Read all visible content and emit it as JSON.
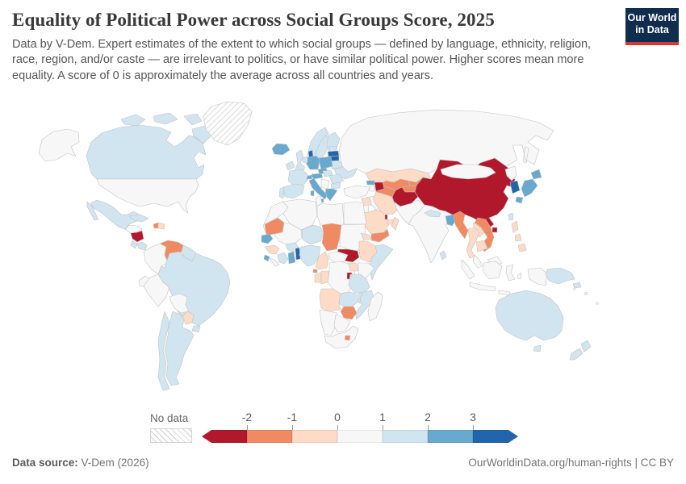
{
  "header": {
    "title": "Equality of Political Power across Social Groups Score, 2025",
    "subtitle": "Data by V-Dem. Expert estimates of the extent to which social groups — defined by language, ethnicity, religion, race, region, and/or caste — are irrelevant to politics, or have similar political power. Higher scores mean more equality. A score of 0 is approximately the average across all countries and years.",
    "logo": {
      "line1": "Our World",
      "line2": "in Data",
      "bg": "#102d4f",
      "stripe": "#d93832"
    }
  },
  "legend": {
    "no_data_label": "No data",
    "ticks": [
      "-2",
      "-1",
      "0",
      "1",
      "2",
      "3"
    ]
  },
  "footer": {
    "source_label": "Data source:",
    "source_value": "V-Dem (2026)",
    "right_text": "OurWorldinData.org/human-rights | CC BY"
  },
  "chart_data": {
    "type": "choropleth",
    "title": "Equality of Political Power across Social Groups Score",
    "year": "2025",
    "scale_ticks": [
      -2,
      -1,
      0,
      1,
      2,
      3
    ],
    "bins": [
      {
        "label": "< -2",
        "color": "#b2182b"
      },
      {
        "label": "-2 to -1",
        "color": "#ef8a62"
      },
      {
        "label": "-1 to 0",
        "color": "#fddbc7"
      },
      {
        "label": "0 to 1",
        "color": "#f7f7f7"
      },
      {
        "label": "1 to 2",
        "color": "#d1e5f0"
      },
      {
        "label": "2 to 3",
        "color": "#67a9cf"
      },
      {
        "label": "> 3",
        "color": "#2166ac"
      },
      {
        "label": "No data",
        "color": "hatch"
      }
    ],
    "no_data_bin_label": "No data",
    "countries": [
      {
        "name": "China",
        "bin": "< -2"
      },
      {
        "name": "Afghanistan",
        "bin": "< -2"
      },
      {
        "name": "Azerbaijan",
        "bin": "< -2"
      },
      {
        "name": "Qatar",
        "bin": "< -2"
      },
      {
        "name": "South Sudan",
        "bin": "< -2"
      },
      {
        "name": "Nicaragua",
        "bin": "< -2"
      },
      {
        "name": "Burundi",
        "bin": "< -2"
      },
      {
        "name": "Venezuela",
        "bin": "-2 to -1"
      },
      {
        "name": "Haiti",
        "bin": "-2 to -1"
      },
      {
        "name": "Mauritania",
        "bin": "-2 to -1"
      },
      {
        "name": "Chad",
        "bin": "-2 to -1"
      },
      {
        "name": "Yemen",
        "bin": "-2 to -1"
      },
      {
        "name": "Zimbabwe",
        "bin": "-2 to -1"
      },
      {
        "name": "Uzbekistan",
        "bin": "-2 to -1"
      },
      {
        "name": "Turkmenistan",
        "bin": "-2 to -1"
      },
      {
        "name": "Kyrgyzstan",
        "bin": "-2 to -1"
      },
      {
        "name": "Tajikistan",
        "bin": "-2 to -1"
      },
      {
        "name": "Myanmar",
        "bin": "-2 to -1"
      },
      {
        "name": "Vietnam",
        "bin": "-2 to -1"
      },
      {
        "name": "Equatorial Guinea",
        "bin": "-2 to -1"
      },
      {
        "name": "Lesotho",
        "bin": "-2 to -1"
      },
      {
        "name": "Paraguay",
        "bin": "-1 to 0"
      },
      {
        "name": "Dominican Republic",
        "bin": "-1 to 0"
      },
      {
        "name": "Guinea",
        "bin": "-1 to 0"
      },
      {
        "name": "Cameroon",
        "bin": "-1 to 0"
      },
      {
        "name": "Gabon",
        "bin": "-1 to 0"
      },
      {
        "name": "Republic of the Congo",
        "bin": "-1 to 0"
      },
      {
        "name": "Angola",
        "bin": "-1 to 0"
      },
      {
        "name": "Uganda",
        "bin": "-1 to 0"
      },
      {
        "name": "Ethiopia",
        "bin": "-1 to 0"
      },
      {
        "name": "Eritrea",
        "bin": "-1 to 0"
      },
      {
        "name": "Iran",
        "bin": "-1 to 0"
      },
      {
        "name": "Saudi Arabia",
        "bin": "-1 to 0"
      },
      {
        "name": "Oman",
        "bin": "-1 to 0"
      },
      {
        "name": "United Arab Emirates",
        "bin": "-1 to 0"
      },
      {
        "name": "Syria",
        "bin": "-1 to 0"
      },
      {
        "name": "Kazakhstan",
        "bin": "-1 to 0"
      },
      {
        "name": "Thailand",
        "bin": "-1 to 0"
      },
      {
        "name": "Laos",
        "bin": "-1 to 0"
      },
      {
        "name": "Cambodia",
        "bin": "-1 to 0"
      },
      {
        "name": "Philippines",
        "bin": "-1 to 0"
      },
      {
        "name": "United States",
        "bin": "0 to 1"
      },
      {
        "name": "Russia",
        "bin": "0 to 1"
      },
      {
        "name": "Mongolia",
        "bin": "0 to 1"
      },
      {
        "name": "North Korea",
        "bin": "0 to 1"
      },
      {
        "name": "India",
        "bin": "0 to 1"
      },
      {
        "name": "Pakistan",
        "bin": "0 to 1"
      },
      {
        "name": "Turkey",
        "bin": "0 to 1"
      },
      {
        "name": "Iraq",
        "bin": "0 to 1"
      },
      {
        "name": "Jordan",
        "bin": "0 to 1"
      },
      {
        "name": "Kuwait",
        "bin": "0 to 1"
      },
      {
        "name": "Armenia",
        "bin": "0 to 1"
      },
      {
        "name": "Morocco",
        "bin": "0 to 1"
      },
      {
        "name": "Algeria",
        "bin": "0 to 1"
      },
      {
        "name": "Tunisia",
        "bin": "0 to 1"
      },
      {
        "name": "Libya",
        "bin": "0 to 1"
      },
      {
        "name": "Egypt",
        "bin": "0 to 1"
      },
      {
        "name": "Sudan",
        "bin": "0 to 1"
      },
      {
        "name": "Mali",
        "bin": "0 to 1"
      },
      {
        "name": "Liberia",
        "bin": "0 to 1"
      },
      {
        "name": "Central African Republic",
        "bin": "0 to 1"
      },
      {
        "name": "Democratic Republic of Congo",
        "bin": "0 to 1"
      },
      {
        "name": "Kenya",
        "bin": "0 to 1"
      },
      {
        "name": "Namibia",
        "bin": "0 to 1"
      },
      {
        "name": "Botswana",
        "bin": "0 to 1"
      },
      {
        "name": "South Africa",
        "bin": "0 to 1"
      },
      {
        "name": "Madagascar",
        "bin": "0 to 1"
      },
      {
        "name": "Colombia",
        "bin": "0 to 1"
      },
      {
        "name": "Peru",
        "bin": "0 to 1"
      },
      {
        "name": "Bolivia",
        "bin": "0 to 1"
      },
      {
        "name": "Ecuador",
        "bin": "0 to 1"
      },
      {
        "name": "Indonesia",
        "bin": "0 to 1"
      },
      {
        "name": "Malaysia",
        "bin": "0 to 1"
      },
      {
        "name": "Serbia",
        "bin": "0 to 1"
      },
      {
        "name": "Guatemala",
        "bin": "0 to 1"
      },
      {
        "name": "Canada",
        "bin": "1 to 2"
      },
      {
        "name": "Mexico",
        "bin": "1 to 2"
      },
      {
        "name": "Cuba",
        "bin": "1 to 2"
      },
      {
        "name": "Costa Rica",
        "bin": "1 to 2"
      },
      {
        "name": "Panama",
        "bin": "1 to 2"
      },
      {
        "name": "Brazil",
        "bin": "1 to 2"
      },
      {
        "name": "Argentina",
        "bin": "1 to 2"
      },
      {
        "name": "Chile",
        "bin": "1 to 2"
      },
      {
        "name": "Uruguay",
        "bin": "1 to 2"
      },
      {
        "name": "Guyana",
        "bin": "1 to 2"
      },
      {
        "name": "United Kingdom",
        "bin": "1 to 2"
      },
      {
        "name": "Ireland",
        "bin": "1 to 2"
      },
      {
        "name": "France",
        "bin": "1 to 2"
      },
      {
        "name": "Spain",
        "bin": "1 to 2"
      },
      {
        "name": "Portugal",
        "bin": "1 to 2"
      },
      {
        "name": "Norway",
        "bin": "1 to 2"
      },
      {
        "name": "Sweden",
        "bin": "1 to 2"
      },
      {
        "name": "Finland",
        "bin": "1 to 2"
      },
      {
        "name": "Estonia",
        "bin": "1 to 2"
      },
      {
        "name": "Belarus",
        "bin": "1 to 2"
      },
      {
        "name": "Ukraine",
        "bin": "1 to 2"
      },
      {
        "name": "Romania",
        "bin": "1 to 2"
      },
      {
        "name": "Bulgaria",
        "bin": "1 to 2"
      },
      {
        "name": "Hungary",
        "bin": "1 to 2"
      },
      {
        "name": "Netherlands",
        "bin": "1 to 2"
      },
      {
        "name": "Niger",
        "bin": "1 to 2"
      },
      {
        "name": "Nigeria",
        "bin": "1 to 2"
      },
      {
        "name": "Burkina Faso",
        "bin": "1 to 2"
      },
      {
        "name": "Ivory Coast",
        "bin": "1 to 2"
      },
      {
        "name": "Tanzania",
        "bin": "1 to 2"
      },
      {
        "name": "Zambia",
        "bin": "1 to 2"
      },
      {
        "name": "Malawi",
        "bin": "1 to 2"
      },
      {
        "name": "Mozambique",
        "bin": "1 to 2"
      },
      {
        "name": "Somalia",
        "bin": "1 to 2"
      },
      {
        "name": "Israel",
        "bin": "1 to 2"
      },
      {
        "name": "Nepal",
        "bin": "1 to 2"
      },
      {
        "name": "Sri Lanka",
        "bin": "1 to 2"
      },
      {
        "name": "Taiwan",
        "bin": "1 to 2"
      },
      {
        "name": "Papua New Guinea",
        "bin": "1 to 2"
      },
      {
        "name": "Australia",
        "bin": "1 to 2"
      },
      {
        "name": "New Zealand",
        "bin": "1 to 2"
      },
      {
        "name": "Iceland",
        "bin": "2 to 3"
      },
      {
        "name": "Germany",
        "bin": "2 to 3"
      },
      {
        "name": "Poland",
        "bin": "2 to 3"
      },
      {
        "name": "Czechia",
        "bin": "2 to 3"
      },
      {
        "name": "Austria",
        "bin": "2 to 3"
      },
      {
        "name": "Switzerland",
        "bin": "2 to 3"
      },
      {
        "name": "Italy",
        "bin": "2 to 3"
      },
      {
        "name": "Greece",
        "bin": "2 to 3"
      },
      {
        "name": "Georgia",
        "bin": "2 to 3"
      },
      {
        "name": "Senegal",
        "bin": "2 to 3"
      },
      {
        "name": "Sierra Leone",
        "bin": "2 to 3"
      },
      {
        "name": "Ghana",
        "bin": "2 to 3"
      },
      {
        "name": "Japan",
        "bin": "2 to 3"
      },
      {
        "name": "Bangladesh",
        "bin": "2 to 3"
      },
      {
        "name": "Denmark",
        "bin": "> 3"
      },
      {
        "name": "Latvia",
        "bin": "> 3"
      },
      {
        "name": "Lithuania",
        "bin": "> 3"
      },
      {
        "name": "South Korea",
        "bin": "> 3"
      },
      {
        "name": "Benin",
        "bin": "> 3"
      },
      {
        "name": "Greenland",
        "bin": "No data"
      }
    ]
  }
}
